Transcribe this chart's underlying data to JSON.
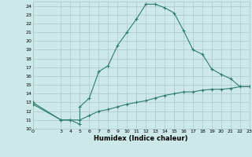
{
  "xlabel": "Humidex (Indice chaleur)",
  "line1_x": [
    0,
    3,
    4,
    5,
    5,
    6,
    7,
    8,
    9,
    10,
    11,
    12,
    13,
    14,
    15,
    16,
    17,
    18,
    19,
    20,
    21,
    22,
    23
  ],
  "line1_y": [
    13,
    11,
    11,
    10.5,
    12.5,
    13.5,
    16.5,
    17.2,
    19.5,
    21,
    22.5,
    24.2,
    24.2,
    23.8,
    23.2,
    21.2,
    19,
    18.5,
    16.8,
    16.2,
    15.7,
    14.8,
    14.8
  ],
  "line2_x": [
    0,
    3,
    4,
    5,
    6,
    7,
    8,
    9,
    10,
    11,
    12,
    13,
    14,
    15,
    16,
    17,
    18,
    19,
    20,
    21,
    22,
    23
  ],
  "line2_y": [
    12.8,
    11,
    11,
    11,
    11.5,
    12,
    12.2,
    12.5,
    12.8,
    13,
    13.2,
    13.5,
    13.8,
    14,
    14.2,
    14.2,
    14.4,
    14.5,
    14.5,
    14.6,
    14.8,
    14.8
  ],
  "line_color": "#2e7d6e",
  "bg_color": "#cce8e8",
  "grid_color": "#aac8c8",
  "xlim": [
    0,
    23
  ],
  "ylim": [
    10,
    24.5
  ],
  "xticks": [
    0,
    3,
    4,
    5,
    6,
    7,
    8,
    9,
    10,
    11,
    12,
    13,
    14,
    15,
    16,
    17,
    18,
    19,
    20,
    21,
    22,
    23
  ],
  "yticks": [
    10,
    11,
    12,
    13,
    14,
    15,
    16,
    17,
    18,
    19,
    20,
    21,
    22,
    23,
    24
  ]
}
